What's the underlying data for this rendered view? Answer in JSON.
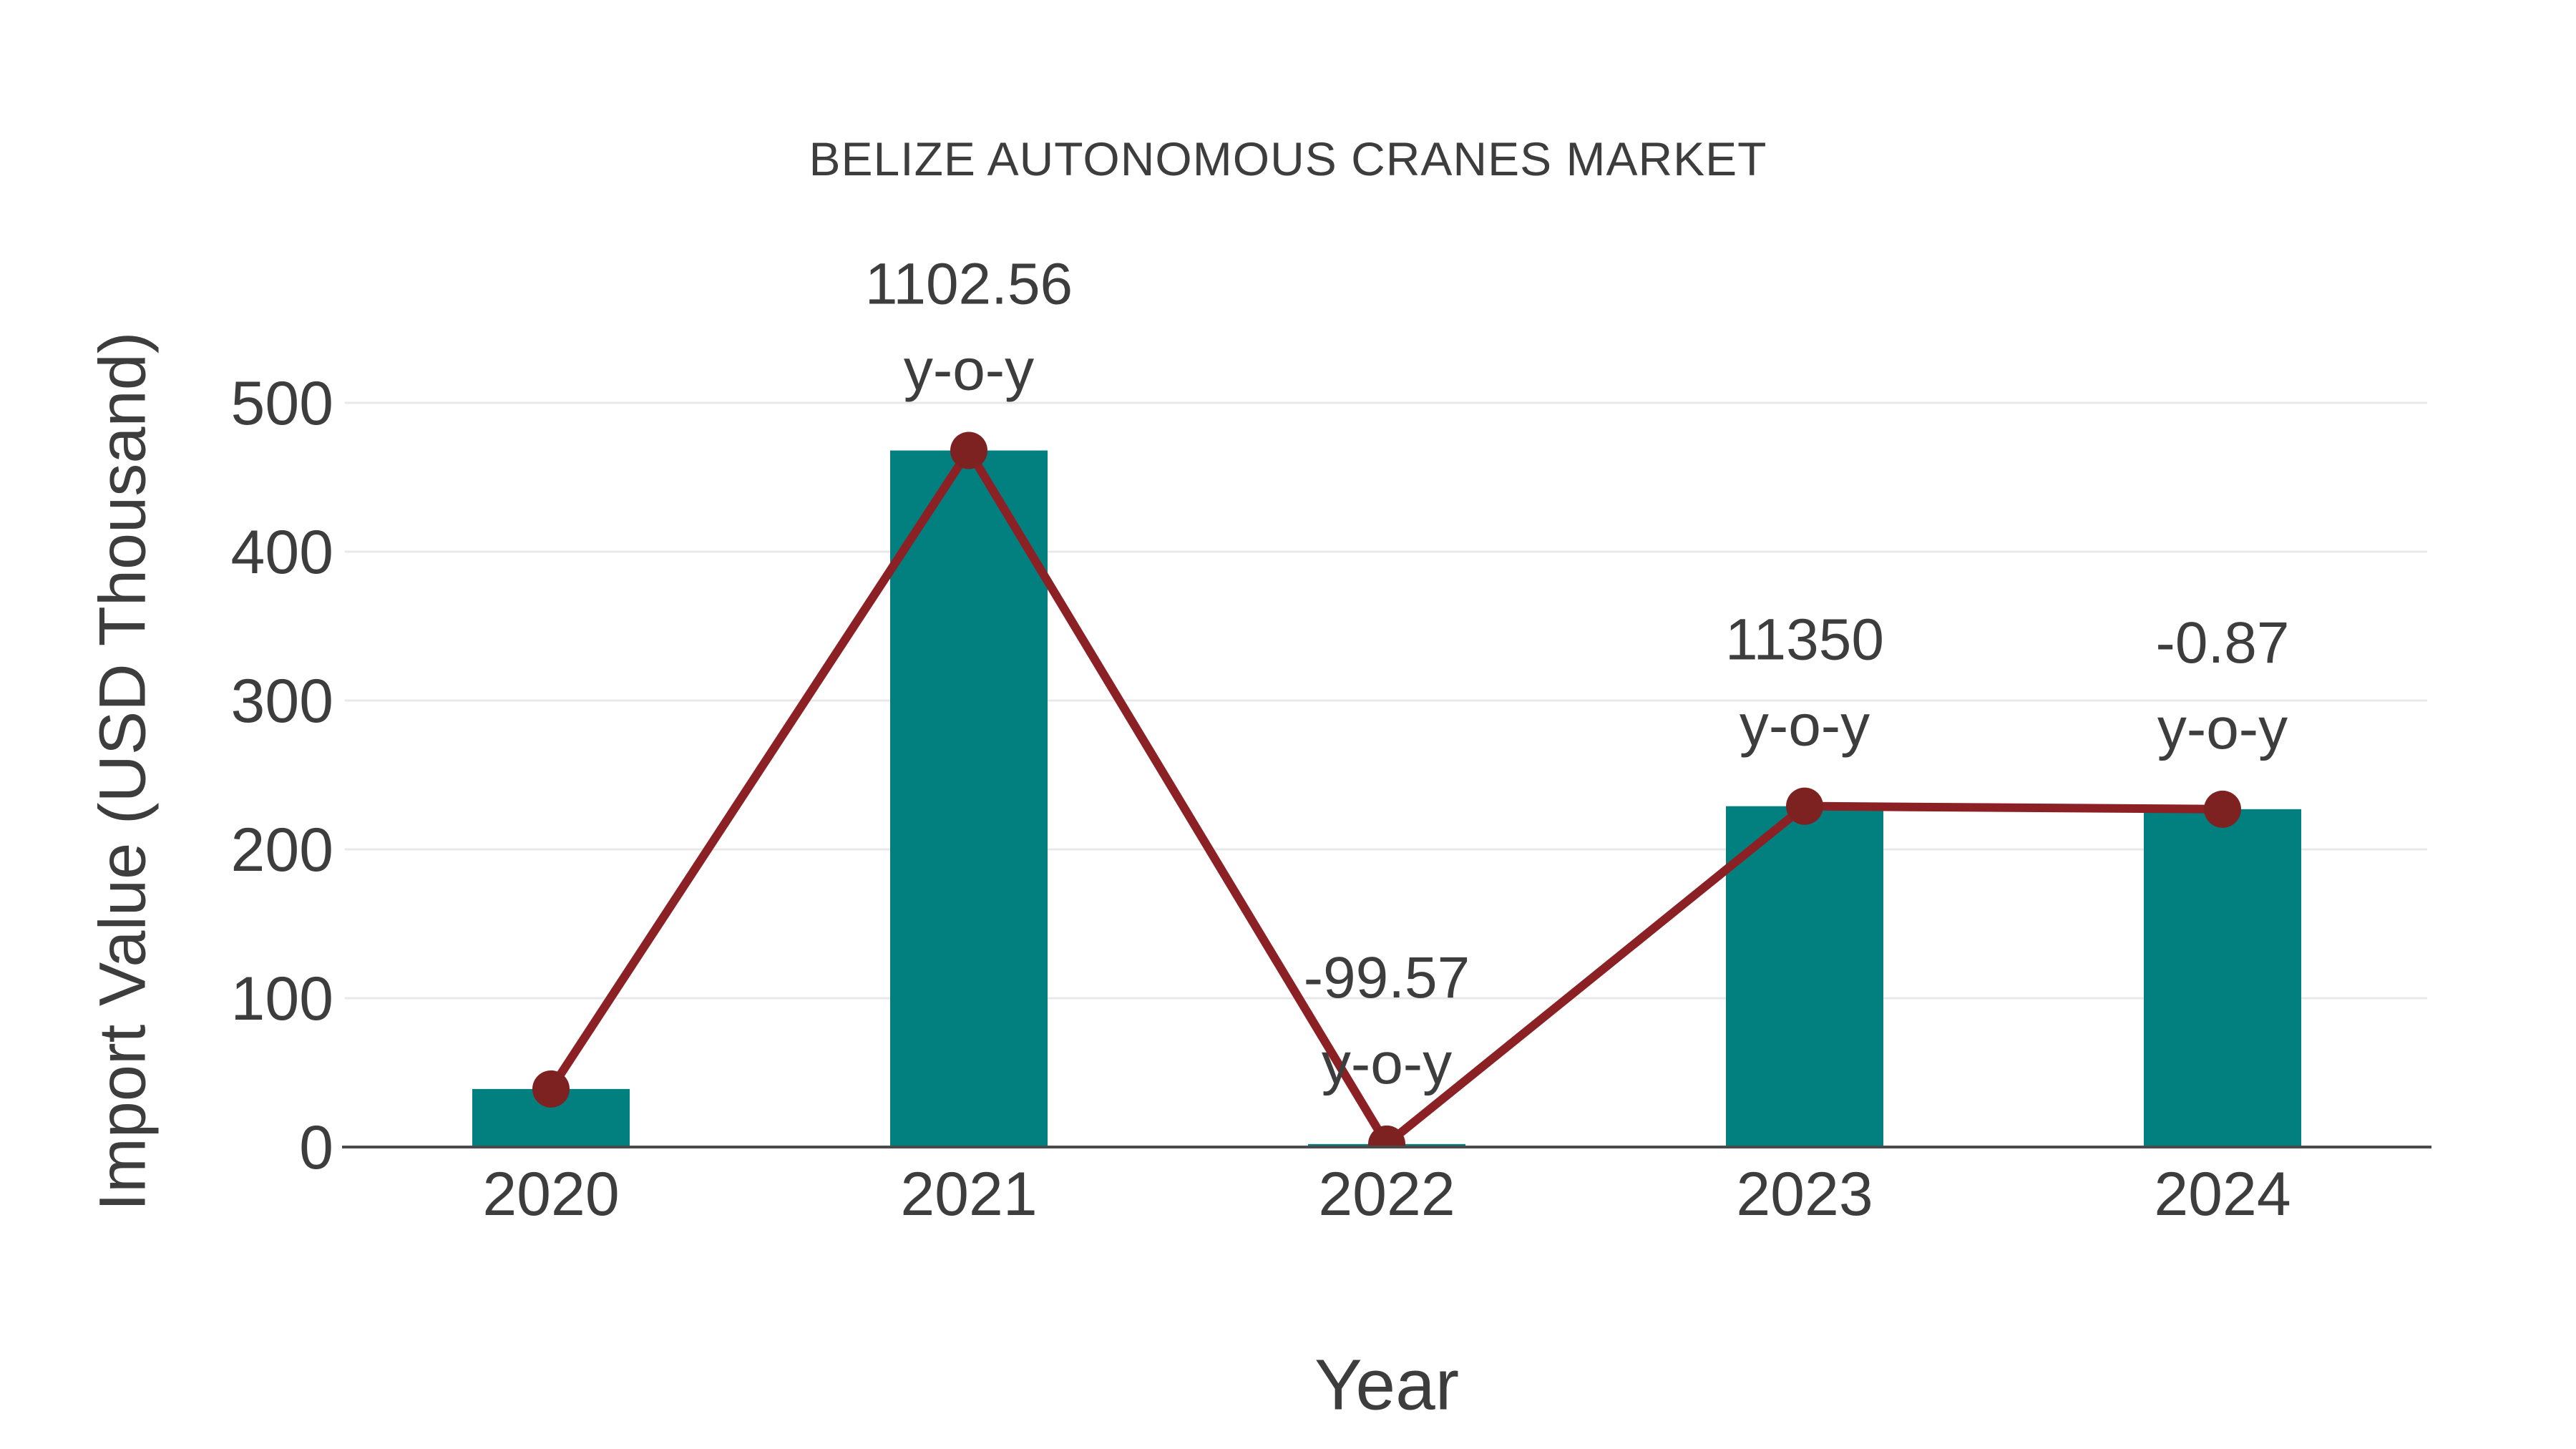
{
  "chart_data": {
    "type": "bar",
    "overlay": "line",
    "title": "BELIZE AUTONOMOUS CRANES MARKET",
    "xlabel": "Year",
    "ylabel": "Import Value (USD Thousand)",
    "categories": [
      "2020",
      "2021",
      "2022",
      "2023",
      "2024"
    ],
    "series": [
      {
        "name": "Import Value bars",
        "type": "bar",
        "values": [
          39,
          468,
          2,
          229,
          227
        ]
      },
      {
        "name": "Import Value trend line",
        "type": "line",
        "values": [
          39,
          468,
          2,
          229,
          227
        ]
      }
    ],
    "annotations": [
      {
        "category": "2021",
        "lines": [
          "1102.56",
          "y-o-y"
        ]
      },
      {
        "category": "2022",
        "lines": [
          "-99.57",
          "y-o-y"
        ]
      },
      {
        "category": "2023",
        "lines": [
          "11350",
          "y-o-y"
        ]
      },
      {
        "category": "2024",
        "lines": [
          "-0.87",
          "y-o-y"
        ]
      }
    ],
    "ylim": [
      0,
      500
    ],
    "yticks": [
      0,
      100,
      200,
      300,
      400,
      500
    ],
    "grid": true,
    "legend_position": "none",
    "colors": {
      "bar": "#028080",
      "line": "#8B2125",
      "marker": "#7E2121",
      "gridline": "#e8e8e8",
      "axis_line": "#4a4a4a",
      "text": "#3d3d3d",
      "background": "#ffffff"
    }
  }
}
